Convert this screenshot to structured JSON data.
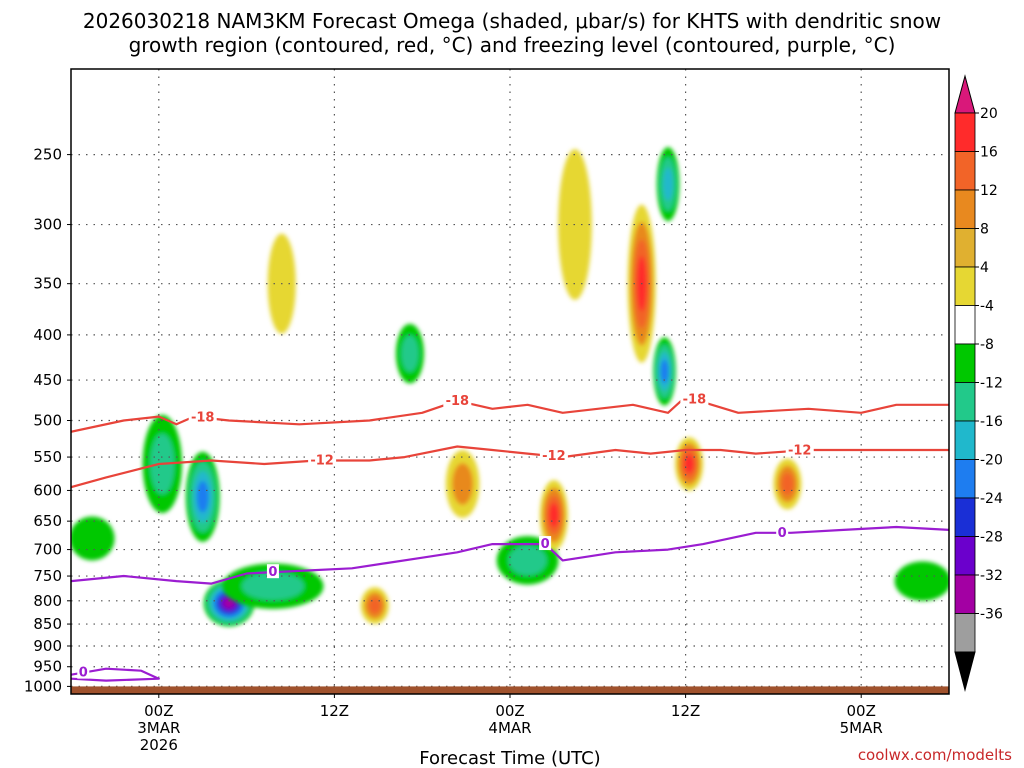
{
  "chart_data": {
    "type": "heatmap",
    "title_line1": "2026030218 NAM3KM Forecast Omega (shaded, μbar/s) for KHTS with dendritic snow",
    "title_line2": "growth region (contoured, red, °C) and freezing level (contoured, purple, °C)",
    "xlabel": "Forecast Time (UTC)",
    "credit": "coolwx.com/modelts",
    "y_axis": {
      "ticks": [
        250,
        300,
        350,
        400,
        450,
        500,
        550,
        600,
        650,
        700,
        750,
        800,
        850,
        900,
        950,
        1000
      ],
      "tick_labels": [
        "250",
        "300",
        "350",
        "400",
        "450",
        "500",
        "550",
        "600",
        "650",
        "700",
        "750",
        "800",
        "850",
        "900",
        "950",
        "1000"
      ],
      "range_hPa": [
        200,
        1020
      ]
    },
    "x_axis": {
      "range_hours": [
        -5,
        45
      ],
      "ticks": [
        {
          "hour": 0,
          "lines": [
            "00Z",
            "3MAR",
            "2026"
          ]
        },
        {
          "hour": 10,
          "lines": [
            "12Z"
          ]
        },
        {
          "hour": 20,
          "lines": [
            "00Z",
            "4MAR"
          ]
        },
        {
          "hour": 30,
          "lines": [
            "12Z"
          ]
        },
        {
          "hour": 40,
          "lines": [
            "00Z",
            "5MAR"
          ]
        }
      ]
    },
    "colorbar": {
      "labels": [
        "20",
        "16",
        "12",
        "8",
        "4",
        "-4",
        "-8",
        "-12",
        "-16",
        "-20",
        "-24",
        "-28",
        "-32",
        "-36"
      ],
      "colors": [
        "#d9187a",
        "#ff2b2b",
        "#f26428",
        "#e8891f",
        "#e0b030",
        "#e6d733",
        "#ffffff",
        "#00c800",
        "#22c98a",
        "#20b8cc",
        "#1e7df0",
        "#1a2fd6",
        "#6b00cc",
        "#a300a3",
        "#9e9e9e",
        "#000000"
      ]
    },
    "omega_features": [
      {
        "hour": -3.8,
        "p": 680,
        "dh": 0.8,
        "dp": 60,
        "value": -6
      },
      {
        "hour": 0.2,
        "p": 560,
        "dh": 0.7,
        "dp": 110,
        "value": -10
      },
      {
        "hour": 2.5,
        "p": 610,
        "dh": 0.6,
        "dp": 110,
        "value": -16
      },
      {
        "hour": 4.0,
        "p": 805,
        "dh": 0.9,
        "dp": 75,
        "value": -30
      },
      {
        "hour": 6.5,
        "p": 770,
        "dh": 1.8,
        "dp": 70,
        "value": -10
      },
      {
        "hour": 7.0,
        "p": 350,
        "dh": 0.5,
        "dp": 70,
        "value": 5
      },
      {
        "hour": 12.3,
        "p": 810,
        "dh": 0.5,
        "dp": 60,
        "value": 12
      },
      {
        "hour": 14.3,
        "p": 420,
        "dh": 0.5,
        "dp": 50,
        "value": -8
      },
      {
        "hour": 17.3,
        "p": 590,
        "dh": 0.6,
        "dp": 80,
        "value": 10
      },
      {
        "hour": 21.0,
        "p": 720,
        "dh": 1.1,
        "dp": 70,
        "value": -8
      },
      {
        "hour": 22.5,
        "p": 640,
        "dh": 0.5,
        "dp": 90,
        "value": 16
      },
      {
        "hour": 23.7,
        "p": 300,
        "dh": 0.6,
        "dp": 90,
        "value": 5
      },
      {
        "hour": 27.5,
        "p": 350,
        "dh": 0.5,
        "dp": 110,
        "value": 17
      },
      {
        "hour": 28.8,
        "p": 440,
        "dh": 0.4,
        "dp": 60,
        "value": -18
      },
      {
        "hour": 29.0,
        "p": 270,
        "dh": 0.4,
        "dp": 40,
        "value": -14
      },
      {
        "hour": 30.2,
        "p": 560,
        "dh": 0.5,
        "dp": 60,
        "value": 18
      },
      {
        "hour": 35.8,
        "p": 590,
        "dh": 0.5,
        "dp": 60,
        "value": 14
      },
      {
        "hour": 43.5,
        "p": 760,
        "dh": 1.0,
        "dp": 60,
        "value": -7
      }
    ],
    "contours": [
      {
        "name": "-18",
        "color": "#e8443a",
        "label": "-18",
        "label_hours": [
          2.5,
          17.0,
          30.5
        ],
        "points": [
          [
            -5,
            515
          ],
          [
            -2,
            500
          ],
          [
            0,
            495
          ],
          [
            1,
            505
          ],
          [
            2,
            495
          ],
          [
            4,
            500
          ],
          [
            8,
            505
          ],
          [
            12,
            500
          ],
          [
            15,
            490
          ],
          [
            17,
            475
          ],
          [
            19,
            485
          ],
          [
            21,
            480
          ],
          [
            23,
            490
          ],
          [
            27,
            480
          ],
          [
            29,
            490
          ],
          [
            30,
            470
          ],
          [
            33,
            490
          ],
          [
            37,
            485
          ],
          [
            40,
            490
          ],
          [
            42,
            480
          ],
          [
            45,
            480
          ]
        ]
      },
      {
        "name": "-12",
        "color": "#e8443a",
        "label": "-12",
        "label_hours": [
          9.3,
          22.5,
          36.5
        ],
        "points": [
          [
            -5,
            595
          ],
          [
            -3,
            580
          ],
          [
            0,
            560
          ],
          [
            3,
            555
          ],
          [
            6,
            560
          ],
          [
            9,
            555
          ],
          [
            12,
            555
          ],
          [
            14,
            550
          ],
          [
            17,
            535
          ],
          [
            19,
            540
          ],
          [
            21,
            545
          ],
          [
            23,
            550
          ],
          [
            26,
            540
          ],
          [
            28,
            545
          ],
          [
            30,
            540
          ],
          [
            32,
            540
          ],
          [
            34,
            545
          ],
          [
            37,
            540
          ],
          [
            41,
            540
          ],
          [
            45,
            540
          ]
        ]
      },
      {
        "name": "0 freezing",
        "color": "#9b1dd1",
        "label": "0",
        "label_hours": [
          6.5,
          22.0,
          35.5
        ],
        "points": [
          [
            -5,
            760
          ],
          [
            -2,
            750
          ],
          [
            1,
            760
          ],
          [
            3,
            765
          ],
          [
            5,
            745
          ],
          [
            8,
            740
          ],
          [
            11,
            735
          ],
          [
            13,
            725
          ],
          [
            15,
            715
          ],
          [
            17,
            705
          ],
          [
            19,
            690
          ],
          [
            22,
            690
          ],
          [
            23,
            720
          ],
          [
            26,
            705
          ],
          [
            29,
            700
          ],
          [
            31,
            690
          ],
          [
            34,
            670
          ],
          [
            36,
            670
          ],
          [
            39,
            665
          ],
          [
            42,
            660
          ],
          [
            45,
            665
          ]
        ]
      },
      {
        "name": "0 surface",
        "color": "#9b1dd1",
        "label": "0",
        "label_hours": [
          -4.3
        ],
        "points": [
          [
            -5,
            970
          ],
          [
            -3,
            955
          ],
          [
            -1,
            960
          ],
          [
            0,
            980
          ],
          [
            -3,
            985
          ],
          [
            -5,
            980
          ]
        ]
      }
    ],
    "terrain_hPa": 1000
  }
}
